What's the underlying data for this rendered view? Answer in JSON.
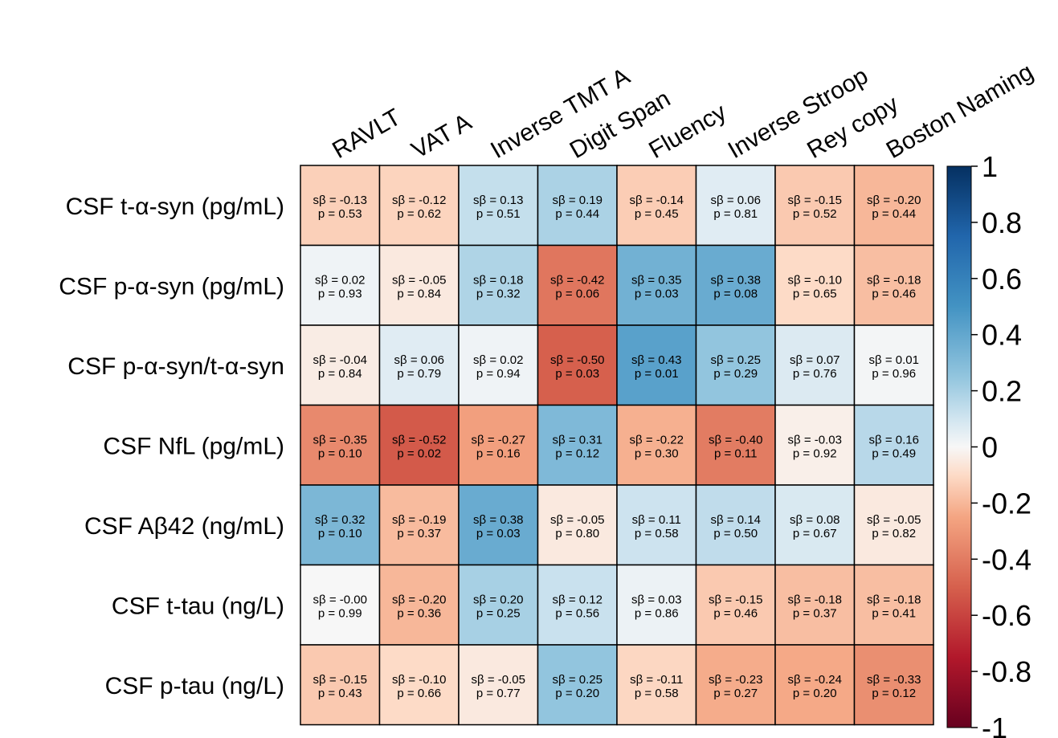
{
  "chart_data": {
    "type": "heatmap",
    "columns": [
      "RAVLT",
      "VAT A",
      "Inverse TMT A",
      "Digit Span",
      "Fluency",
      "Inverse Stroop",
      "Rey copy",
      "Boston Naming"
    ],
    "rows": [
      "CSF t-α-syn (pg/mL)",
      "CSF p-α-syn (pg/mL)",
      "CSF p-α-syn/t-α-syn",
      "CSF NfL (pg/mL)",
      "CSF Aβ42 (ng/mL)",
      "CSF t-tau (ng/L)",
      "CSF p-tau (ng/L)"
    ],
    "cells": [
      [
        {
          "sb": "-0.13",
          "p": "0.53"
        },
        {
          "sb": "-0.12",
          "p": "0.62"
        },
        {
          "sb": "0.13",
          "p": "0.51"
        },
        {
          "sb": "0.19",
          "p": "0.44"
        },
        {
          "sb": "-0.14",
          "p": "0.45"
        },
        {
          "sb": "0.06",
          "p": "0.81"
        },
        {
          "sb": "-0.15",
          "p": "0.52"
        },
        {
          "sb": "-0.20",
          "p": "0.44"
        }
      ],
      [
        {
          "sb": "0.02",
          "p": "0.93"
        },
        {
          "sb": "-0.05",
          "p": "0.84"
        },
        {
          "sb": "0.18",
          "p": "0.32"
        },
        {
          "sb": "-0.42",
          "p": "0.06"
        },
        {
          "sb": "0.35",
          "p": "0.03"
        },
        {
          "sb": "0.38",
          "p": "0.08"
        },
        {
          "sb": "-0.10",
          "p": "0.65"
        },
        {
          "sb": "-0.18",
          "p": "0.46"
        }
      ],
      [
        {
          "sb": "-0.04",
          "p": "0.84"
        },
        {
          "sb": "0.06",
          "p": "0.79"
        },
        {
          "sb": "0.02",
          "p": "0.94"
        },
        {
          "sb": "-0.50",
          "p": "0.03"
        },
        {
          "sb": "0.43",
          "p": "0.01"
        },
        {
          "sb": "0.25",
          "p": "0.29"
        },
        {
          "sb": "0.07",
          "p": "0.76"
        },
        {
          "sb": "0.01",
          "p": "0.96"
        }
      ],
      [
        {
          "sb": "-0.35",
          "p": "0.10"
        },
        {
          "sb": "-0.52",
          "p": "0.02"
        },
        {
          "sb": "-0.27",
          "p": "0.16"
        },
        {
          "sb": "0.31",
          "p": "0.12"
        },
        {
          "sb": "-0.22",
          "p": "0.30"
        },
        {
          "sb": "-0.40",
          "p": "0.11"
        },
        {
          "sb": "-0.03",
          "p": "0.92"
        },
        {
          "sb": "0.16",
          "p": "0.49"
        }
      ],
      [
        {
          "sb": "0.32",
          "p": "0.10"
        },
        {
          "sb": "-0.19",
          "p": "0.37"
        },
        {
          "sb": "0.38",
          "p": "0.03"
        },
        {
          "sb": "-0.05",
          "p": "0.80"
        },
        {
          "sb": "0.11",
          "p": "0.58"
        },
        {
          "sb": "0.14",
          "p": "0.50"
        },
        {
          "sb": "0.08",
          "p": "0.67"
        },
        {
          "sb": "-0.05",
          "p": "0.82"
        }
      ],
      [
        {
          "sb": "-0.00",
          "p": "0.99"
        },
        {
          "sb": "-0.20",
          "p": "0.36"
        },
        {
          "sb": "0.20",
          "p": "0.25"
        },
        {
          "sb": "0.12",
          "p": "0.56"
        },
        {
          "sb": "0.03",
          "p": "0.86"
        },
        {
          "sb": "-0.15",
          "p": "0.46"
        },
        {
          "sb": "-0.18",
          "p": "0.37"
        },
        {
          "sb": "-0.18",
          "p": "0.41"
        }
      ],
      [
        {
          "sb": "-0.15",
          "p": "0.43"
        },
        {
          "sb": "-0.10",
          "p": "0.66"
        },
        {
          "sb": "-0.05",
          "p": "0.77"
        },
        {
          "sb": "0.25",
          "p": "0.20"
        },
        {
          "sb": "-0.11",
          "p": "0.58"
        },
        {
          "sb": "-0.23",
          "p": "0.27"
        },
        {
          "sb": "-0.24",
          "p": "0.20"
        },
        {
          "sb": "-0.33",
          "p": "0.12"
        }
      ]
    ],
    "labels": {
      "sb_prefix": "sβ = ",
      "p_prefix": "p = "
    },
    "color_scale": {
      "range": [
        -1,
        1
      ],
      "ticks": [
        "1",
        "0.8",
        "0.6",
        "0.4",
        "0.2",
        "0",
        "-0.2",
        "-0.4",
        "-0.6",
        "-0.8",
        "-1"
      ],
      "stops": [
        {
          "v": -1,
          "color": "#67001f"
        },
        {
          "v": -0.75,
          "color": "#b2182b"
        },
        {
          "v": -0.5,
          "color": "#d6604d"
        },
        {
          "v": -0.25,
          "color": "#f4a582"
        },
        {
          "v": -0.1,
          "color": "#fddbc7"
        },
        {
          "v": 0,
          "color": "#f7f7f7"
        },
        {
          "v": 0.1,
          "color": "#d1e5f0"
        },
        {
          "v": 0.25,
          "color": "#92c5de"
        },
        {
          "v": 0.5,
          "color": "#4393c3"
        },
        {
          "v": 0.75,
          "color": "#2166ac"
        },
        {
          "v": 1,
          "color": "#053061"
        }
      ]
    }
  }
}
